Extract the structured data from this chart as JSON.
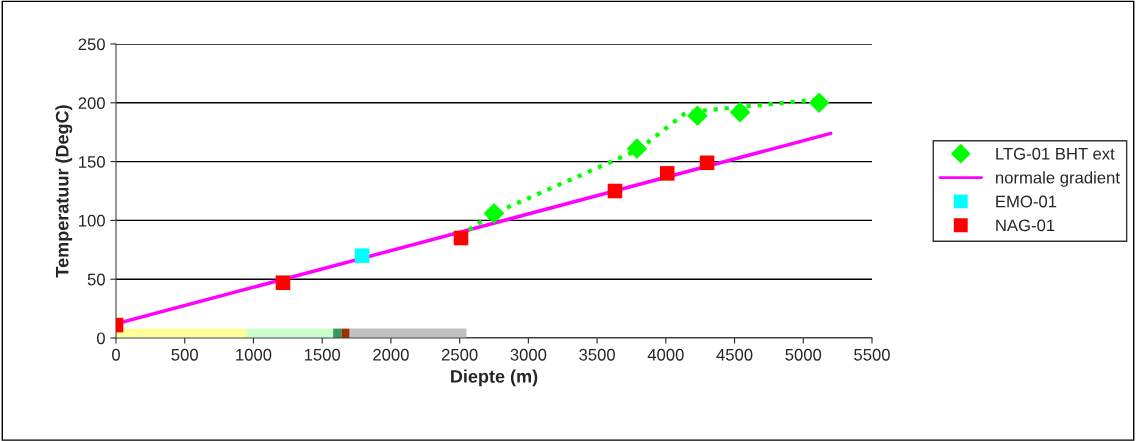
{
  "chart_data": {
    "type": "scatter",
    "xlabel": "Diepte (m)",
    "ylabel": "Temperatuur (DegC)",
    "xlim": [
      0,
      5500
    ],
    "xticks": [
      0,
      500,
      1000,
      1500,
      2000,
      2500,
      3000,
      3500,
      4000,
      4500,
      5000,
      5500
    ],
    "ylim": [
      0,
      250
    ],
    "yticks": [
      0,
      50,
      100,
      150,
      200,
      250
    ],
    "grid": "y",
    "legend": "right",
    "series": [
      {
        "name": "LTG-01 BHT ext",
        "marker": "diamond",
        "color": "#00ff00",
        "x": [
          2750,
          3790,
          4230,
          4540,
          5115
        ],
        "values": [
          106,
          161,
          189,
          192,
          200
        ]
      },
      {
        "name": "normale gradient",
        "type": "line",
        "marker": "none",
        "line_style": "solid",
        "color": "#ff00ff",
        "x": [
          0,
          5200
        ],
        "values": [
          12,
          174
        ]
      },
      {
        "name": "EMO-01",
        "marker": "square",
        "color": "#00ffff",
        "x": [
          1790
        ],
        "values": [
          70
        ]
      },
      {
        "name": "NAG-01",
        "marker": "square",
        "color": "#ff0000",
        "x": [
          0,
          1215,
          2510,
          3630,
          4010,
          4300
        ],
        "values": [
          11,
          47,
          85,
          125,
          140,
          149
        ]
      },
      {
        "type": "line",
        "marker": "none",
        "line_style": "dotted",
        "color": "#00ff00",
        "x": [
          2500,
          2750,
          3800,
          4150,
          5120
        ],
        "values": [
          87,
          106,
          160,
          192,
          203
        ]
      },
      {
        "type": "area",
        "color": "#ffff99",
        "x": [
          0,
          950
        ],
        "values": [
          8,
          8
        ]
      },
      {
        "type": "area",
        "color": "#ccffcc",
        "x": [
          950,
          1580
        ],
        "values": [
          8,
          8
        ]
      },
      {
        "type": "area",
        "color": "#339966",
        "x": [
          1580,
          1640
        ],
        "values": [
          8,
          8
        ]
      },
      {
        "type": "area",
        "color": "#993300",
        "x": [
          1640,
          1700
        ],
        "values": [
          8,
          8
        ]
      },
      {
        "type": "area",
        "color": "#c0c0c0",
        "x": [
          1700,
          2550
        ],
        "values": [
          8,
          8
        ]
      }
    ]
  }
}
